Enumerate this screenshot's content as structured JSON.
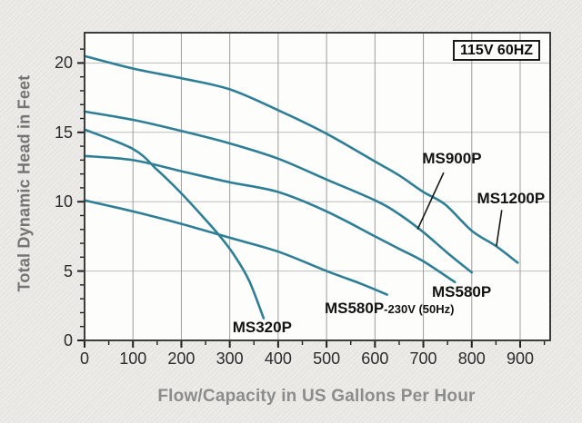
{
  "chart_data": {
    "type": "line",
    "badge": "115V 60HZ",
    "xlabel": "Flow/Capacity in US Gallons Per Hour",
    "ylabel": "Total Dynamic Head in Feet",
    "xlim": [
      0,
      962
    ],
    "ylim": [
      0,
      22.2
    ],
    "x_ticks": [
      0,
      100,
      200,
      300,
      400,
      500,
      600,
      700,
      800,
      900
    ],
    "y_ticks": [
      0,
      5,
      10,
      15,
      20
    ],
    "x_minor_step": 50,
    "y_minor_step": 1,
    "grid": "major",
    "legend_position": "inline-curve-labels",
    "line_color": "#2e7f95",
    "series": [
      {
        "name": "MS1200P",
        "points": [
          [
            0,
            20.5
          ],
          [
            100,
            19.6
          ],
          [
            200,
            18.9
          ],
          [
            300,
            18.1
          ],
          [
            400,
            16.6
          ],
          [
            500,
            14.9
          ],
          [
            600,
            12.9
          ],
          [
            650,
            11.9
          ],
          [
            700,
            10.7
          ],
          [
            745,
            9.8
          ],
          [
            800,
            7.9
          ],
          [
            850,
            6.8
          ],
          [
            895,
            5.6
          ]
        ]
      },
      {
        "name": "MS900P",
        "points": [
          [
            0,
            16.5
          ],
          [
            100,
            15.9
          ],
          [
            200,
            15.1
          ],
          [
            300,
            14.2
          ],
          [
            400,
            13.1
          ],
          [
            500,
            11.6
          ],
          [
            600,
            10.1
          ],
          [
            650,
            9.1
          ],
          [
            700,
            7.8
          ],
          [
            750,
            6.3
          ],
          [
            800,
            4.9
          ]
        ]
      },
      {
        "name": "MS580P",
        "points": [
          [
            0,
            13.3
          ],
          [
            100,
            13.0
          ],
          [
            200,
            12.2
          ],
          [
            300,
            11.4
          ],
          [
            400,
            10.7
          ],
          [
            500,
            9.3
          ],
          [
            600,
            7.5
          ],
          [
            650,
            6.6
          ],
          [
            700,
            5.7
          ],
          [
            765,
            4.2
          ]
        ]
      },
      {
        "name": "MS580P-230V (50Hz)",
        "points": [
          [
            0,
            10.1
          ],
          [
            100,
            9.3
          ],
          [
            200,
            8.4
          ],
          [
            300,
            7.4
          ],
          [
            400,
            6.4
          ],
          [
            500,
            5.0
          ],
          [
            570,
            4.1
          ],
          [
            625,
            3.3
          ]
        ]
      },
      {
        "name": "MS320P",
        "points": [
          [
            0,
            15.2
          ],
          [
            100,
            13.8
          ],
          [
            150,
            12.3
          ],
          [
            200,
            10.6
          ],
          [
            250,
            8.7
          ],
          [
            280,
            7.5
          ],
          [
            310,
            6.1
          ],
          [
            340,
            4.3
          ],
          [
            370,
            1.6
          ]
        ]
      }
    ],
    "annotations": [
      {
        "for": "MS1200P",
        "text": "MS1200P",
        "at": [
          881,
          10.2
        ],
        "anchor": "center",
        "leader": [
          [
            862,
            9.4
          ],
          [
            851,
            6.8
          ]
        ]
      },
      {
        "for": "MS900P",
        "text": "MS900P",
        "at": [
          759,
          13.1
        ],
        "anchor": "center",
        "leader": [
          [
            742,
            12.1
          ],
          [
            688,
            8.0
          ]
        ]
      },
      {
        "for": "MS580P",
        "text": "MS580P",
        "at": [
          779,
          3.5
        ],
        "anchor": "center"
      },
      {
        "for": "MS580P-230V (50Hz)",
        "text_main": "MS580P",
        "text_suffix": "-230V (50Hz)",
        "at": [
          496,
          2.3
        ],
        "anchor": "left"
      },
      {
        "for": "MS320P",
        "text": "MS320P",
        "at": [
          367,
          0.9
        ],
        "anchor": "center"
      }
    ]
  }
}
